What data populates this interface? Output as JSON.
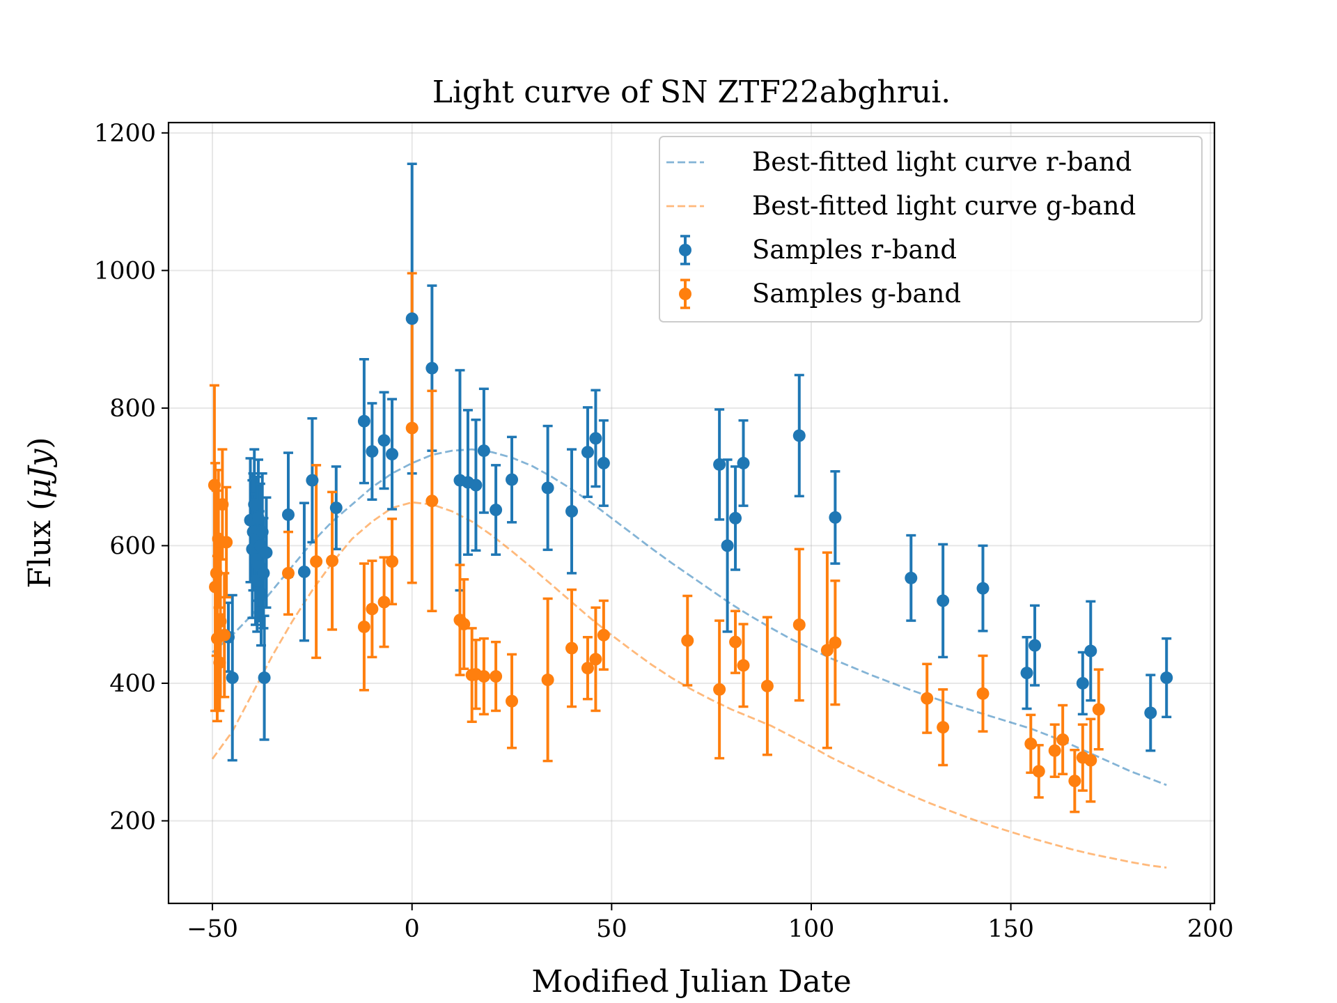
{
  "chart_data": {
    "type": "scatter",
    "title": "Light curve of SN ZTF22abghrui.",
    "xlabel": "Modified Julian Date",
    "ylabel_prefix": "Flux (",
    "ylabel_math": "μJy",
    "ylabel_suffix": ")",
    "xlim": [
      -61,
      201
    ],
    "ylim": [
      80,
      1215
    ],
    "xticks": [
      -50,
      0,
      50,
      100,
      150,
      200
    ],
    "xtick_labels": [
      "−50",
      "0",
      "50",
      "100",
      "150",
      "200"
    ],
    "yticks": [
      200,
      400,
      600,
      800,
      1000,
      1200
    ],
    "ytick_labels": [
      "200",
      "400",
      "600",
      "800",
      "1000",
      "1200"
    ],
    "grid": true,
    "legend_position": "top-right",
    "colors": {
      "r": "#1f77b4",
      "g": "#ff7f0e"
    },
    "legend": [
      {
        "key": "r_curve",
        "label": "Best-fitted light curve r-band",
        "kind": "dashed",
        "color": "#1f77b4"
      },
      {
        "key": "g_curve",
        "label": "Best-fitted light curve g-band",
        "kind": "dashed",
        "color": "#ff7f0e"
      },
      {
        "key": "r_samples",
        "label": "Samples r-band",
        "kind": "errorbar",
        "color": "#1f77b4"
      },
      {
        "key": "g_samples",
        "label": "Samples g-band",
        "kind": "errorbar",
        "color": "#ff7f0e"
      }
    ],
    "curves": [
      {
        "name": "Best-fitted light curve r-band",
        "color": "#1f77b4",
        "x": [
          -50,
          -45,
          -40,
          -35,
          -30,
          -25,
          -20,
          -15,
          -10,
          -5,
          0,
          5,
          10,
          15,
          20,
          25,
          30,
          35,
          40,
          45,
          50,
          55,
          60,
          65,
          70,
          75,
          80,
          85,
          90,
          95,
          100,
          105,
          110,
          115,
          120,
          125,
          130,
          135,
          140,
          145,
          150,
          155,
          160,
          165,
          170,
          175,
          180,
          185,
          189
        ],
        "y": [
          445,
          470,
          500,
          535,
          570,
          605,
          635,
          660,
          685,
          705,
          720,
          732,
          738,
          740,
          736,
          728,
          716,
          700,
          682,
          662,
          640,
          618,
          596,
          575,
          555,
          535,
          515,
          497,
          480,
          464,
          450,
          436,
          424,
          412,
          401,
          390,
          380,
          370,
          361,
          352,
          343,
          334,
          323,
          311,
          298,
          285,
          272,
          261,
          252
        ]
      },
      {
        "name": "Best-fitted light curve g-band",
        "color": "#ff7f0e",
        "x": [
          -50,
          -45,
          -40,
          -35,
          -30,
          -25,
          -20,
          -15,
          -10,
          -5,
          0,
          5,
          10,
          15,
          20,
          25,
          30,
          35,
          40,
          45,
          50,
          55,
          60,
          65,
          70,
          75,
          80,
          85,
          90,
          95,
          100,
          105,
          110,
          115,
          120,
          125,
          130,
          135,
          140,
          145,
          150,
          155,
          160,
          165,
          170,
          175,
          180,
          185,
          189
        ],
        "y": [
          290,
          330,
          385,
          440,
          490,
          535,
          575,
          610,
          635,
          655,
          663,
          660,
          650,
          635,
          615,
          592,
          568,
          543,
          518,
          493,
          470,
          448,
          427,
          408,
          391,
          376,
          362,
          350,
          338,
          323,
          308,
          292,
          278,
          264,
          250,
          237,
          225,
          214,
          203,
          193,
          184,
          175,
          167,
          159,
          152,
          146,
          140,
          135,
          132
        ]
      }
    ],
    "series": [
      {
        "name": "Samples r-band",
        "color": "#1f77b4",
        "x": [
          -46,
          -45,
          -40.5,
          -40,
          -39.8,
          -39.5,
          -39.2,
          -39,
          -38.8,
          -38.5,
          -38.2,
          -38,
          -37.8,
          -37.5,
          -37.2,
          -37,
          -36.5,
          -31,
          -27,
          -25,
          -19,
          -12,
          -10,
          -7,
          -5,
          0,
          5,
          12,
          14,
          16,
          18,
          21,
          25,
          34,
          40,
          44,
          46,
          48,
          77,
          79,
          81,
          83,
          97,
          106,
          125,
          133,
          143,
          154,
          156,
          168,
          170,
          185,
          189
        ],
        "y": [
          467,
          408,
          637,
          595,
          620,
          660,
          580,
          610,
          550,
          640,
          570,
          600,
          530,
          620,
          560,
          408,
          590,
          645,
          562,
          695,
          655,
          781,
          737,
          753,
          733,
          930,
          858,
          695,
          692,
          688,
          738,
          652,
          696,
          684,
          650,
          736,
          756,
          720,
          718,
          600,
          640,
          720,
          760,
          641,
          553,
          520,
          538,
          415,
          455,
          400,
          447,
          357,
          408
        ],
        "err": [
          50,
          120,
          90,
          100,
          85,
          80,
          95,
          90,
          75,
          85,
          80,
          90,
          75,
          85,
          80,
          90,
          80,
          90,
          100,
          90,
          60,
          90,
          70,
          70,
          80,
          225,
          120,
          160,
          105,
          95,
          90,
          65,
          62,
          90,
          90,
          65,
          70,
          62,
          80,
          125,
          75,
          62,
          88,
          67,
          62,
          82,
          62,
          52,
          58,
          45,
          72,
          55,
          57
        ]
      },
      {
        "name": "Samples g-band",
        "color": "#ff7f0e",
        "x": [
          -49.5,
          -49.3,
          -49,
          -48.8,
          -48.5,
          -48.2,
          -48,
          -47.5,
          -47,
          -46.5,
          -31,
          -24,
          -20,
          -12,
          -10,
          -7,
          -5,
          0,
          5,
          12,
          13,
          15,
          16,
          18,
          21,
          25,
          34,
          40,
          44,
          46,
          48,
          69,
          77,
          81,
          83,
          89,
          97,
          104,
          106,
          129,
          133,
          143,
          155,
          157,
          161,
          163,
          166,
          168,
          170,
          172
        ],
        "y": [
          688,
          540,
          560,
          465,
          610,
          430,
          490,
          660,
          470,
          605,
          560,
          577,
          578,
          482,
          508,
          518,
          577,
          771,
          665,
          492,
          486,
          412,
          413,
          410,
          410,
          374,
          405,
          451,
          422,
          435,
          470,
          462,
          391,
          460,
          426,
          396,
          485,
          448,
          459,
          378,
          336,
          385,
          312,
          272,
          302,
          318,
          258,
          292,
          288,
          362
        ],
        "err": [
          145,
          180,
          120,
          120,
          100,
          70,
          110,
          80,
          90,
          80,
          60,
          140,
          100,
          92,
          70,
          65,
          62,
          225,
          160,
          80,
          65,
          68,
          50,
          55,
          50,
          68,
          118,
          85,
          45,
          75,
          50,
          65,
          100,
          45,
          60,
          100,
          110,
          142,
          90,
          50,
          55,
          55,
          42,
          38,
          38,
          50,
          45,
          48,
          60,
          58
        ]
      }
    ]
  }
}
